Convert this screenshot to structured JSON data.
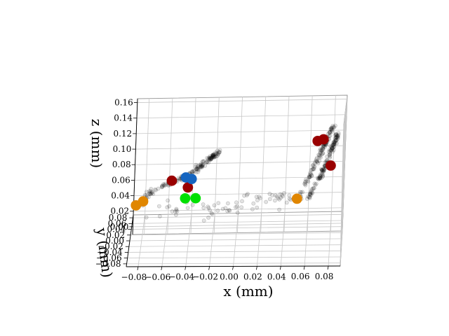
{
  "chart_data": {
    "type": "scatter3d",
    "title": "",
    "xlabel": "x (mm)",
    "ylabel": "y (mm)",
    "zlabel": "z (mm)",
    "xlim": [
      -0.09,
      0.09
    ],
    "ylim": [
      -0.09,
      0.09
    ],
    "zlim": [
      -0.01,
      0.165
    ],
    "grid": true,
    "x_ticks": [
      "−0.08",
      "−0.06",
      "−0.04",
      "−0.02",
      "0.00",
      "0.02",
      "0.04",
      "0.06",
      "0.08"
    ],
    "y_ticks": [
      "−0.08",
      "−0.06",
      "−0.04",
      "−0.02",
      "0.00",
      "0.02",
      "0.04",
      "0.06",
      "0.08"
    ],
    "z_ticks": [
      "0.00",
      "0.02",
      "0.04",
      "0.06",
      "0.08",
      "0.10",
      "0.12",
      "0.14",
      "0.16"
    ],
    "x_tick_values": [
      -0.08,
      -0.06,
      -0.04,
      -0.02,
      0.0,
      0.02,
      0.04,
      0.06,
      0.08
    ],
    "y_tick_values": [
      -0.08,
      -0.06,
      -0.04,
      -0.02,
      0.0,
      0.02,
      0.04,
      0.06,
      0.08
    ],
    "z_tick_values": [
      0.0,
      0.02,
      0.04,
      0.06,
      0.08,
      0.1,
      0.12,
      0.14,
      0.16
    ],
    "series": [
      {
        "name": "point cloud",
        "color": "#000000",
        "alpha": 0.12,
        "clusters": [
          {
            "path": [
              [
                -0.085,
                -0.02,
                0.012
              ],
              [
                -0.075,
                -0.02,
                0.03
              ],
              [
                -0.06,
                -0.02,
                0.04
              ],
              [
                -0.045,
                -0.02,
                0.048
              ],
              [
                -0.035,
                -0.02,
                0.06
              ],
              [
                -0.025,
                -0.02,
                0.072
              ],
              [
                -0.018,
                -0.02,
                0.08
              ]
            ],
            "count": 180,
            "spread": 0.004
          },
          {
            "path": [
              [
                0.06,
                0.0,
                0.02
              ],
              [
                0.07,
                0.0,
                0.05
              ],
              [
                0.078,
                0.0,
                0.08
              ],
              [
                0.084,
                0.0,
                0.105
              ]
            ],
            "count": 130,
            "spread": 0.003
          },
          {
            "path": [
              [
                0.052,
                0.0,
                0.02
              ],
              [
                0.062,
                0.0,
                0.055
              ],
              [
                0.072,
                0.0,
                0.09
              ],
              [
                0.08,
                0.0,
                0.115
              ]
            ],
            "count": 110,
            "spread": 0.003
          },
          {
            "path": [
              [
                -0.07,
                -0.06,
                0.0
              ],
              [
                -0.02,
                -0.06,
                0.0
              ],
              [
                0.03,
                -0.06,
                0.0
              ]
            ],
            "count": 45,
            "spread": 0.02
          },
          {
            "path": [
              [
                0.0,
                0.02,
                0.03
              ],
              [
                0.03,
                0.02,
                0.025
              ],
              [
                0.05,
                0.02,
                0.025
              ]
            ],
            "count": 25,
            "spread": 0.008
          }
        ]
      },
      {
        "name": "orange markers",
        "color": "#e08600",
        "points": [
          [
            -0.088,
            -0.02,
            0.012
          ],
          [
            -0.082,
            -0.02,
            0.017
          ],
          [
            0.05,
            0.0,
            0.02
          ]
        ]
      },
      {
        "name": "dark red markers",
        "color": "#990000",
        "points": [
          [
            -0.058,
            -0.02,
            0.043
          ],
          [
            -0.044,
            -0.02,
            0.034
          ],
          [
            0.066,
            0.0,
            0.094
          ],
          [
            0.071,
            0.0,
            0.096
          ],
          [
            0.078,
            0.0,
            0.062
          ]
        ]
      },
      {
        "name": "blue markers",
        "color": "#1565c0",
        "points": [
          [
            -0.046,
            -0.02,
            0.047
          ],
          [
            -0.041,
            -0.02,
            0.045
          ]
        ]
      },
      {
        "name": "green markers",
        "color": "#00e000",
        "points": [
          [
            -0.046,
            -0.02,
            0.02
          ],
          [
            -0.037,
            -0.02,
            0.02
          ]
        ]
      }
    ]
  }
}
